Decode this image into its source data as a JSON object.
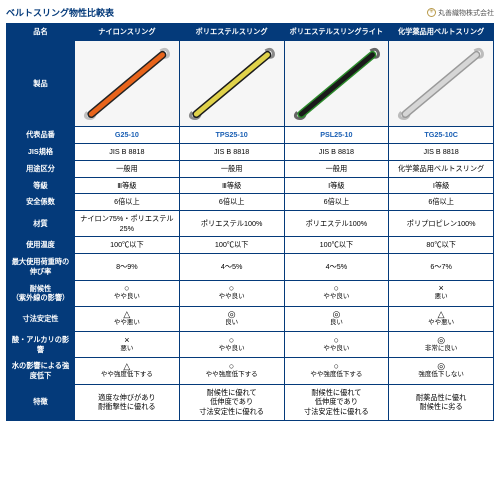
{
  "title": "ベルトスリング物性比較表",
  "company": "丸善織物株式会社",
  "cols": [
    {
      "name": "ナイロンスリング",
      "pn": "G25-10",
      "band": "#e8641b",
      "edge": "#222",
      "loop": "#bfbfbf"
    },
    {
      "name": "ポリエステルスリング",
      "pn": "TPS25-10",
      "band": "#e0d24a",
      "edge": "#1a1a1a",
      "loop": "#8a8a8a"
    },
    {
      "name": "ポリエステルスリングライト",
      "pn": "PSL25-10",
      "band": "#1a1a1a",
      "edge": "#2a8a2a",
      "loop": "#666"
    },
    {
      "name": "化学薬品用ベルトスリング",
      "pn": "TG25-10C",
      "band": "#d6d6d6",
      "edge": "#9a9a9a",
      "loop": "#bcbcbc"
    }
  ],
  "rows": [
    {
      "label": "JIS規格",
      "v": [
        "JIS B 8818",
        "JIS B 8818",
        "JIS B 8818",
        "JIS B 8818"
      ]
    },
    {
      "label": "用途区分",
      "v": [
        "一般用",
        "一般用",
        "一般用",
        "化学薬品用ベルトスリング"
      ]
    },
    {
      "label": "等級",
      "v": [
        "Ⅲ等級",
        "Ⅲ等級",
        "Ⅰ等級",
        "Ⅰ等級"
      ]
    },
    {
      "label": "安全係数",
      "v": [
        "6倍以上",
        "6倍以上",
        "6倍以上",
        "6倍以上"
      ]
    },
    {
      "label": "材質",
      "v": [
        "ナイロン75%・ポリエステル25%",
        "ポリエステル100%",
        "ポリエステル100%",
        "ポリプロピレン100%"
      ]
    },
    {
      "label": "使用温度",
      "v": [
        "100℃以下",
        "100℃以下",
        "100℃以下",
        "80℃以下"
      ]
    },
    {
      "label": "最大使用荷重時の\n伸び率",
      "v": [
        "8～9%",
        "4～5%",
        "4～5%",
        "6～7%"
      ]
    },
    {
      "label": "耐候性\n（紫外線の影響）",
      "v": [
        [
          "○",
          "やや良い"
        ],
        [
          "○",
          "やや良い"
        ],
        [
          "○",
          "やや良い"
        ],
        [
          "×",
          "悪い"
        ]
      ]
    },
    {
      "label": "寸法安定性",
      "v": [
        [
          "△",
          "やや悪い"
        ],
        [
          "◎",
          "良い"
        ],
        [
          "◎",
          "良い"
        ],
        [
          "△",
          "やや悪い"
        ]
      ]
    },
    {
      "label": "酸・アルカリの影響",
      "v": [
        [
          "×",
          "悪い"
        ],
        [
          "○",
          "やや良い"
        ],
        [
          "○",
          "やや良い"
        ],
        [
          "◎",
          "非常に良い"
        ]
      ]
    },
    {
      "label": "水の影響による強度低下",
      "v": [
        [
          "△",
          "やや強度低下する"
        ],
        [
          "○",
          "やや強度低下する"
        ],
        [
          "○",
          "やや強度低下する"
        ],
        [
          "◎",
          "強度低下しない"
        ]
      ]
    },
    {
      "label": "特徴",
      "v": [
        "適度な伸びがあり\n耐衝撃性に優れる",
        "耐候性に優れて\n低伸度であり\n寸法安定性に優れる",
        "耐候性に優れて\n低伸度であり\n寸法安定性に優れる",
        "耐薬品性に優れ\n耐候性に劣る"
      ]
    }
  ],
  "hdr": {
    "product": "品名",
    "img": "製品",
    "pn": "代表品番"
  }
}
